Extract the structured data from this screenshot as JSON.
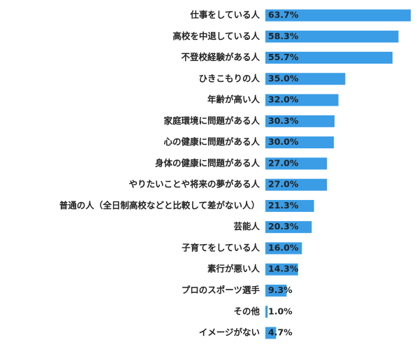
{
  "chart_data": {
    "type": "bar",
    "orientation": "horizontal",
    "color": "#3a9de6",
    "categories": [
      "仕事をしている人",
      "高校を中退している人",
      "不登校経験がある人",
      "ひきこもりの人",
      "年齢が高い人",
      "家庭環境に問題がある人",
      "心の健康に問題がある人",
      "身体の健康に問題がある人",
      "やりたいことや将来の夢がある人",
      "普通の人（全日制高校などと比較して差がない人）",
      "芸能人",
      "子育てをしている人",
      "素行が悪い人",
      "プロのスポーツ選手",
      "その他",
      "イメージがない"
    ],
    "values": [
      63.7,
      58.3,
      55.7,
      35.0,
      32.0,
      30.3,
      30.0,
      27.0,
      27.0,
      21.3,
      20.3,
      16.0,
      14.3,
      9.3,
      1.0,
      4.7
    ],
    "value_labels": [
      "63.7%",
      "58.3%",
      "55.7%",
      "35.0%",
      "32.0%",
      "30.3%",
      "30.0%",
      "27.0%",
      "27.0%",
      "21.3%",
      "20.3%",
      "16.0%",
      "14.3%",
      "9.3%",
      "1.0%",
      "4.7%"
    ]
  }
}
